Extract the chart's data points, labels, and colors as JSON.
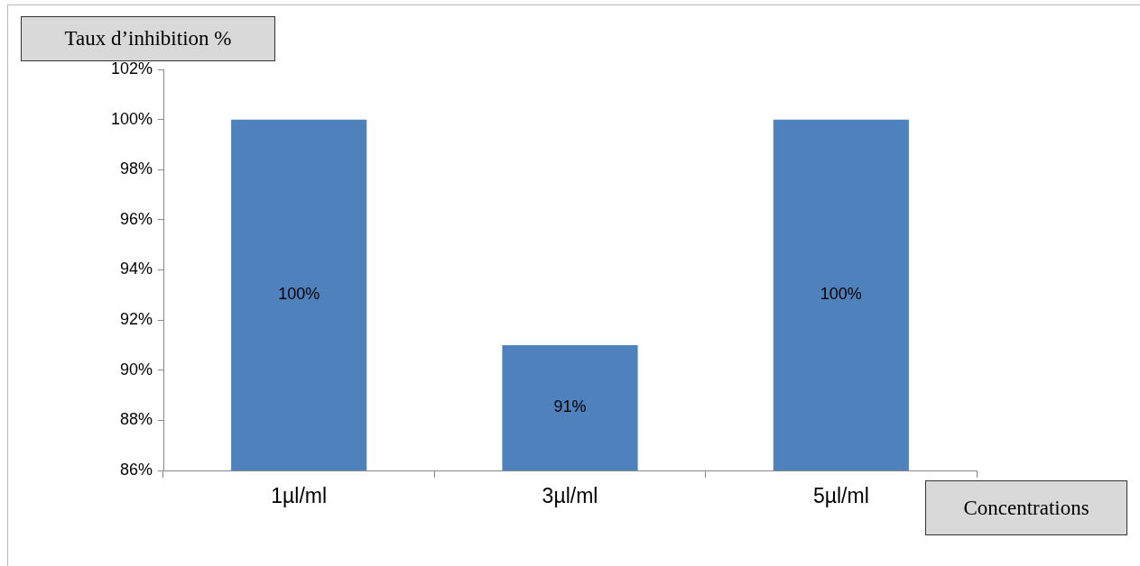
{
  "chart_data": {
    "type": "bar",
    "ylabel": "Taux d’inhibition %",
    "xlabel": "Concentrations",
    "categories": [
      "1µl/ml",
      "3µl/ml",
      "5µl/ml"
    ],
    "values": [
      100,
      91,
      100
    ],
    "color": "#4f81bd",
    "value_labels": [
      "100%",
      "91%",
      "100%"
    ],
    "ylim": [
      86,
      102
    ],
    "yticks": [
      {
        "value": 86,
        "label": "86%"
      },
      {
        "value": 88,
        "label": "88%"
      },
      {
        "value": 90,
        "label": "90%"
      },
      {
        "value": 92,
        "label": "92%"
      },
      {
        "value": 94,
        "label": "94%"
      },
      {
        "value": 96,
        "label": "96%"
      },
      {
        "value": 98,
        "label": "98%"
      },
      {
        "value": 100,
        "label": "100%"
      },
      {
        "value": 102,
        "label": "102%"
      }
    ],
    "grid": false,
    "legend": false
  }
}
